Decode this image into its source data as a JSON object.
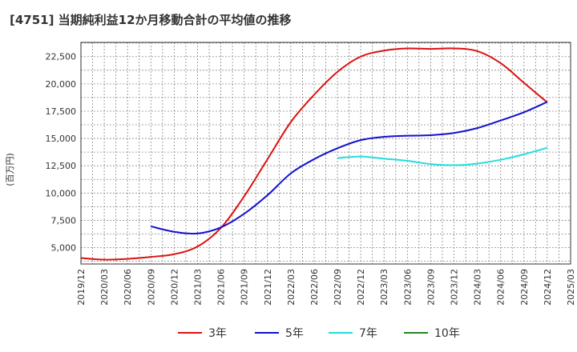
{
  "chart_data": {
    "type": "line",
    "title": "[4751]  当期純利益12か月移動合計の平均値の推移",
    "ylabel": "(百万円)",
    "ylim": [
      3500,
      23800
    ],
    "x_ticks": [
      "2019/12",
      "2020/03",
      "2020/06",
      "2020/09",
      "2020/12",
      "2021/03",
      "2021/06",
      "2021/09",
      "2021/12",
      "2022/03",
      "2022/06",
      "2022/09",
      "2022/12",
      "2023/03",
      "2023/06",
      "2023/09",
      "2023/12",
      "2024/03",
      "2024/06",
      "2024/09",
      "2024/12",
      "2025/03"
    ],
    "y_ticks": [
      5000,
      7500,
      10000,
      12500,
      15000,
      17500,
      20000,
      22500
    ],
    "y_tick_labels": [
      "5,000",
      "7,500",
      "10,000",
      "12,500",
      "15,000",
      "17,500",
      "20,000",
      "22,500"
    ],
    "series": [
      {
        "name": "3年",
        "color": "#dd1111",
        "points": [
          [
            "2019/12",
            4050
          ],
          [
            "2020/03",
            3900
          ],
          [
            "2020/06",
            3970
          ],
          [
            "2020/09",
            4150
          ],
          [
            "2020/12",
            4400
          ],
          [
            "2021/03",
            5100
          ],
          [
            "2021/06",
            6800
          ],
          [
            "2021/09",
            9700
          ],
          [
            "2021/12",
            13100
          ],
          [
            "2022/03",
            16500
          ],
          [
            "2022/06",
            19000
          ],
          [
            "2022/09",
            21100
          ],
          [
            "2022/12",
            22500
          ],
          [
            "2023/03",
            23050
          ],
          [
            "2023/06",
            23250
          ],
          [
            "2023/09",
            23200
          ],
          [
            "2023/12",
            23250
          ],
          [
            "2024/03",
            23000
          ],
          [
            "2024/06",
            21900
          ],
          [
            "2024/09",
            20100
          ],
          [
            "2024/12",
            18300
          ]
        ]
      },
      {
        "name": "5年",
        "color": "#1111cc",
        "points": [
          [
            "2020/09",
            6950
          ],
          [
            "2020/12",
            6450
          ],
          [
            "2021/03",
            6300
          ],
          [
            "2021/06",
            6850
          ],
          [
            "2021/09",
            8100
          ],
          [
            "2021/12",
            9800
          ],
          [
            "2022/03",
            11800
          ],
          [
            "2022/06",
            13100
          ],
          [
            "2022/09",
            14100
          ],
          [
            "2022/12",
            14850
          ],
          [
            "2023/03",
            15150
          ],
          [
            "2023/06",
            15250
          ],
          [
            "2023/09",
            15300
          ],
          [
            "2023/12",
            15500
          ],
          [
            "2024/03",
            15950
          ],
          [
            "2024/06",
            16650
          ],
          [
            "2024/09",
            17400
          ],
          [
            "2024/12",
            18350
          ]
        ]
      },
      {
        "name": "7年",
        "color": "#22dddd",
        "points": [
          [
            "2022/09",
            13200
          ],
          [
            "2022/12",
            13350
          ],
          [
            "2023/03",
            13150
          ],
          [
            "2023/06",
            12950
          ],
          [
            "2023/09",
            12650
          ],
          [
            "2023/12",
            12550
          ],
          [
            "2024/03",
            12700
          ],
          [
            "2024/06",
            13050
          ],
          [
            "2024/09",
            13550
          ],
          [
            "2024/12",
            14150
          ]
        ]
      },
      {
        "name": "10年",
        "color": "#228822",
        "points": []
      }
    ]
  }
}
